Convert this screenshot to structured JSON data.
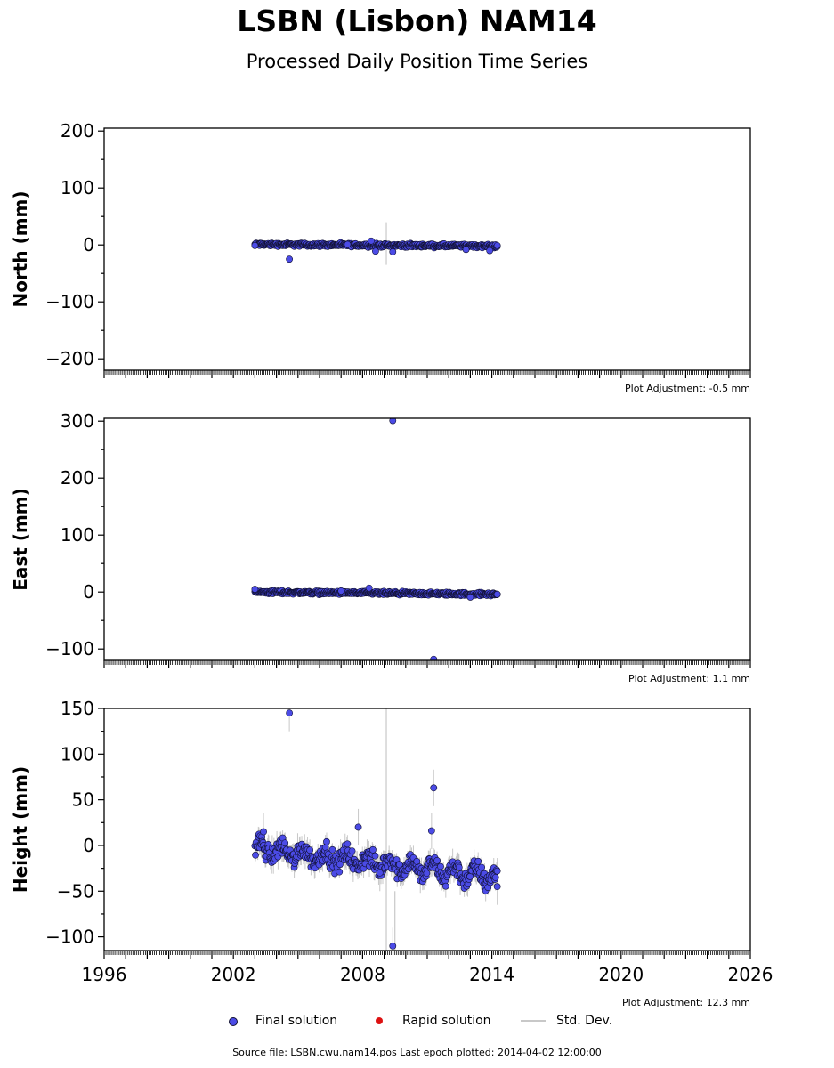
{
  "title": "LSBN (Lisbon) NAM14",
  "subtitle": "Processed Daily Position Time Series",
  "legend": {
    "final": "Final solution",
    "rapid": "Rapid solution",
    "std": "Std. Dev."
  },
  "colors": {
    "final": "#4b4be6",
    "final_edge": "#111133",
    "rapid": "#dd1111",
    "std": "#c8c8c8"
  },
  "footer": "Source file: LSBN.cwu.nam14.pos  Last epoch plotted: 2014-04-02 12:00:00",
  "chart_data": [
    {
      "type": "scatter",
      "ylabel": "North (mm)",
      "ylim": [
        -220,
        205
      ],
      "yticks": [
        -200,
        -100,
        0,
        100,
        200
      ],
      "xlim": [
        1996,
        2026
      ],
      "adjustment": "Plot Adjustment: -0.5 mm",
      "series": [
        {
          "name": "Final solution",
          "trend": {
            "start": [
              2003.0,
              1
            ],
            "end": [
              2014.25,
              -2
            ],
            "spread": 2.5
          },
          "points": [
            [
              2003.0,
              -1
            ],
            [
              2004.6,
              -25
            ],
            [
              2007.3,
              1
            ],
            [
              2008.4,
              7
            ],
            [
              2008.6,
              -11
            ],
            [
              2009.4,
              -12
            ],
            [
              2012.8,
              -8
            ],
            [
              2013.9,
              -10
            ],
            [
              2014.25,
              -1
            ]
          ]
        }
      ]
    },
    {
      "type": "scatter",
      "ylabel": "East (mm)",
      "ylim": [
        -120,
        305
      ],
      "yticks": [
        -100,
        0,
        100,
        200,
        300
      ],
      "xlim": [
        1996,
        2026
      ],
      "adjustment": "Plot Adjustment: 1.1 mm",
      "series": [
        {
          "name": "Final solution",
          "trend": {
            "start": [
              2003.0,
              0
            ],
            "end": [
              2014.25,
              -4
            ],
            "spread": 2.5
          },
          "points": [
            [
              2003.0,
              5
            ],
            [
              2007.0,
              2
            ],
            [
              2008.3,
              7
            ],
            [
              2009.4,
              301
            ],
            [
              2011.3,
              -118
            ],
            [
              2013.0,
              -9
            ],
            [
              2014.25,
              -4
            ]
          ]
        }
      ]
    },
    {
      "type": "scatter",
      "ylabel": "Height (mm)",
      "ylim": [
        -115,
        150
      ],
      "yticks": [
        -100,
        -50,
        0,
        50,
        100,
        150
      ],
      "xlim": [
        1996,
        2026
      ],
      "xticks": [
        1996,
        2002,
        2008,
        2014,
        2020,
        2026
      ],
      "adjustment": "Plot Adjustment: 12.3 mm",
      "series": [
        {
          "name": "Final solution",
          "trend": {
            "start": [
              2003.0,
              -3
            ],
            "end": [
              2014.25,
              -35
            ],
            "spread": 9
          },
          "points": [
            [
              2004.6,
              145
            ],
            [
              2011.3,
              63
            ],
            [
              2011.2,
              16
            ],
            [
              2009.4,
              -110
            ],
            [
              2007.8,
              20
            ],
            [
              2008.8,
              -30
            ],
            [
              2014.25,
              -45
            ],
            [
              2003.4,
              15
            ]
          ]
        }
      ]
    }
  ]
}
